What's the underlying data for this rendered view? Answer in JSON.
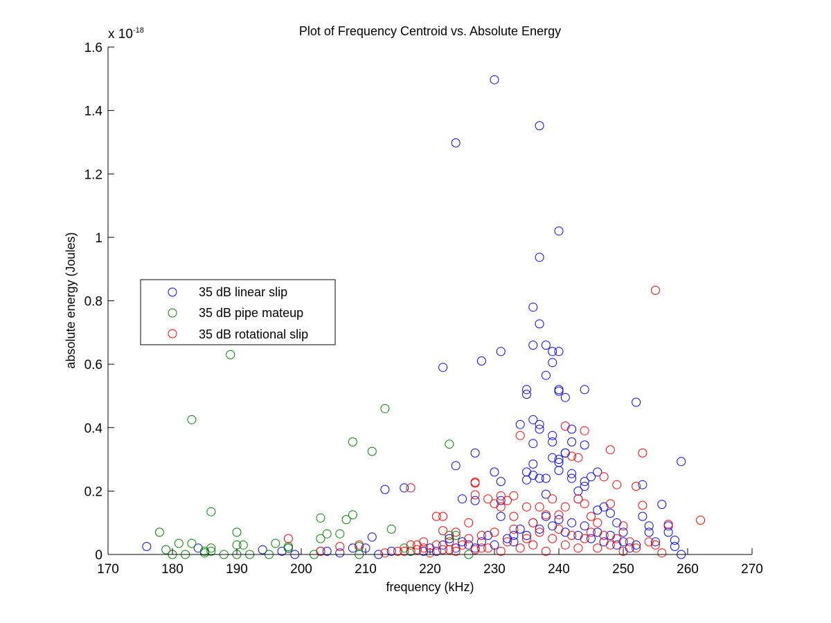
{
  "chart_data": {
    "type": "scatter",
    "title": "Plot of Frequency Centroid vs. Absolute Energy",
    "xlabel": "frequency (kHz)",
    "ylabel": "absolute energy (Joules)",
    "y_multiplier_label": "x 10",
    "y_multiplier_exponent": "-18",
    "xlim": [
      170,
      270
    ],
    "ylim": [
      0,
      1.6
    ],
    "x_ticks": [
      170,
      180,
      190,
      200,
      210,
      220,
      230,
      240,
      250,
      260,
      270
    ],
    "x_tick_labels": [
      "170",
      "180",
      "190",
      "200",
      "210",
      "220",
      "230",
      "240",
      "250",
      "260",
      "270"
    ],
    "y_ticks": [
      0,
      0.2,
      0.4,
      0.6,
      0.8,
      1.0,
      1.2,
      1.4,
      1.6
    ],
    "y_tick_labels": [
      "0",
      "0.2",
      "0.4",
      "0.6",
      "0.8",
      "1",
      "1.2",
      "1.4",
      "1.6"
    ],
    "grid": false,
    "legend_position": "middle-left",
    "marker": "open-circle",
    "series": [
      {
        "name": "35 dB linear slip",
        "color": "#0000ff",
        "points": [
          [
            176,
            0.025
          ],
          [
            184,
            0.02
          ],
          [
            194,
            0.015
          ],
          [
            197,
            0.01
          ],
          [
            198,
            0.02
          ],
          [
            199,
            0.0
          ],
          [
            203,
            0.01
          ],
          [
            204,
            0.01
          ],
          [
            206,
            0.005
          ],
          [
            208,
            0.02
          ],
          [
            210,
            0.02
          ],
          [
            211,
            0.055
          ],
          [
            212,
            0.0
          ],
          [
            213,
            0.205
          ],
          [
            214,
            0.01
          ],
          [
            216,
            0.21
          ],
          [
            217,
            0.01
          ],
          [
            219,
            0.01
          ],
          [
            222,
            0.59
          ],
          [
            224,
            1.298
          ],
          [
            224,
            0.28
          ],
          [
            225,
            0.175
          ],
          [
            227,
            0.32
          ],
          [
            227,
            0.17
          ],
          [
            228,
            0.61
          ],
          [
            230,
            1.497
          ],
          [
            230,
            0.26
          ],
          [
            231,
            0.64
          ],
          [
            231,
            0.23
          ],
          [
            231,
            0.17
          ],
          [
            231,
            0.12
          ],
          [
            233,
            0.06
          ],
          [
            234,
            0.41
          ],
          [
            235,
            0.52
          ],
          [
            235,
            0.505
          ],
          [
            235,
            0.26
          ],
          [
            235,
            0.235
          ],
          [
            236,
            0.78
          ],
          [
            236,
            0.66
          ],
          [
            236,
            0.425
          ],
          [
            236,
            0.35
          ],
          [
            236,
            0.285
          ],
          [
            236,
            0.25
          ],
          [
            237,
            1.352
          ],
          [
            237,
            0.937
          ],
          [
            237,
            0.727
          ],
          [
            237,
            0.41
          ],
          [
            237,
            0.395
          ],
          [
            237,
            0.24
          ],
          [
            238,
            0.66
          ],
          [
            238,
            0.565
          ],
          [
            238,
            0.24
          ],
          [
            238,
            0.19
          ],
          [
            239,
            0.64
          ],
          [
            239,
            0.605
          ],
          [
            239,
            0.375
          ],
          [
            239,
            0.355
          ],
          [
            239,
            0.305
          ],
          [
            240,
            1.02
          ],
          [
            240,
            0.64
          ],
          [
            240,
            0.52
          ],
          [
            240,
            0.515
          ],
          [
            240,
            0.3
          ],
          [
            240,
            0.29
          ],
          [
            240,
            0.265
          ],
          [
            241,
            0.495
          ],
          [
            241,
            0.32
          ],
          [
            241,
            0.32
          ],
          [
            242,
            0.395
          ],
          [
            242,
            0.355
          ],
          [
            242,
            0.255
          ],
          [
            242,
            0.24
          ],
          [
            243,
            0.2
          ],
          [
            243,
            0.175
          ],
          [
            244,
            0.52
          ],
          [
            244,
            0.345
          ],
          [
            244,
            0.23
          ],
          [
            244,
            0.215
          ],
          [
            245,
            0.245
          ],
          [
            246,
            0.26
          ],
          [
            246,
            0.14
          ],
          [
            247,
            0.15
          ],
          [
            248,
            0.13
          ],
          [
            249,
            0.1
          ],
          [
            250,
            0.07
          ],
          [
            252,
            0.48
          ],
          [
            253,
            0.22
          ],
          [
            253,
            0.12
          ],
          [
            254,
            0.09
          ],
          [
            254,
            0.07
          ],
          [
            255,
            0.04
          ],
          [
            256,
            0.158
          ],
          [
            257,
            0.09
          ],
          [
            257,
            0.07
          ],
          [
            258,
            0.045
          ],
          [
            258,
            0.025
          ],
          [
            259,
            0.293
          ],
          [
            259,
            0.0
          ],
          [
            220,
            0.02
          ],
          [
            221,
            0.01
          ],
          [
            222,
            0.03
          ],
          [
            223,
            0.05
          ],
          [
            224,
            0.02
          ],
          [
            225,
            0.04
          ],
          [
            226,
            0.03
          ],
          [
            227,
            0.02
          ],
          [
            228,
            0.04
          ],
          [
            229,
            0.06
          ],
          [
            230,
            0.03
          ],
          [
            232,
            0.05
          ],
          [
            233,
            0.04
          ],
          [
            234,
            0.08
          ],
          [
            235,
            0.06
          ],
          [
            236,
            0.1
          ],
          [
            237,
            0.08
          ],
          [
            238,
            0.12
          ],
          [
            239,
            0.09
          ],
          [
            240,
            0.11
          ],
          [
            241,
            0.07
          ],
          [
            242,
            0.1
          ],
          [
            243,
            0.06
          ],
          [
            244,
            0.09
          ],
          [
            245,
            0.05
          ],
          [
            246,
            0.07
          ],
          [
            247,
            0.04
          ],
          [
            248,
            0.06
          ],
          [
            249,
            0.03
          ],
          [
            250,
            0.04
          ],
          [
            251,
            0.02
          ],
          [
            252,
            0.03
          ]
        ]
      },
      {
        "name": "35 dB pipe mateup",
        "color": "#008000",
        "points": [
          [
            178,
            0.07
          ],
          [
            179,
            0.015
          ],
          [
            180,
            0.0
          ],
          [
            181,
            0.035
          ],
          [
            182,
            0.0
          ],
          [
            183,
            0.425
          ],
          [
            183,
            0.035
          ],
          [
            185,
            0.005
          ],
          [
            185,
            0.01
          ],
          [
            186,
            0.135
          ],
          [
            186,
            0.02
          ],
          [
            186,
            0.01
          ],
          [
            188,
            0.0
          ],
          [
            189,
            0.63
          ],
          [
            190,
            0.07
          ],
          [
            190,
            0.03
          ],
          [
            190,
            0.0
          ],
          [
            191,
            0.03
          ],
          [
            192,
            0.0
          ],
          [
            195,
            0.0
          ],
          [
            196,
            0.035
          ],
          [
            198,
            0.02
          ],
          [
            198,
            0.025
          ],
          [
            202,
            0.0
          ],
          [
            203,
            0.115
          ],
          [
            203,
            0.05
          ],
          [
            204,
            0.065
          ],
          [
            206,
            0.065
          ],
          [
            207,
            0.11
          ],
          [
            208,
            0.355
          ],
          [
            208,
            0.125
          ],
          [
            209,
            0.0
          ],
          [
            209,
            0.025
          ],
          [
            211,
            0.325
          ],
          [
            213,
            0.46
          ],
          [
            214,
            0.08
          ],
          [
            217,
            0.01
          ],
          [
            223,
            0.348
          ],
          [
            223,
            0.06
          ],
          [
            224,
            0.06
          ],
          [
            216,
            0.02
          ],
          [
            226,
            0.0
          ]
        ]
      },
      {
        "name": "35 dB rotational slip",
        "color": "#ff0000",
        "points": [
          [
            198,
            0.05
          ],
          [
            203,
            0.01
          ],
          [
            206,
            0.025
          ],
          [
            209,
            0.03
          ],
          [
            213,
            0.005
          ],
          [
            215,
            0.01
          ],
          [
            216,
            0.01
          ],
          [
            217,
            0.21
          ],
          [
            218,
            0.03
          ],
          [
            219,
            0.02
          ],
          [
            221,
            0.12
          ],
          [
            222,
            0.12
          ],
          [
            222,
            0.075
          ],
          [
            223,
            0.015
          ],
          [
            224,
            0.07
          ],
          [
            226,
            0.1
          ],
          [
            227,
            0.228
          ],
          [
            227,
            0.225
          ],
          [
            227,
            0.188
          ],
          [
            228,
            0.02
          ],
          [
            229,
            0.175
          ],
          [
            230,
            0.16
          ],
          [
            231,
            0.185
          ],
          [
            231,
            0.15
          ],
          [
            232,
            0.17
          ],
          [
            233,
            0.185
          ],
          [
            233,
            0.12
          ],
          [
            234,
            0.375
          ],
          [
            235,
            0.15
          ],
          [
            236,
            0.1
          ],
          [
            237,
            0.15
          ],
          [
            238,
            0.125
          ],
          [
            239,
            0.175
          ],
          [
            240,
            0.125
          ],
          [
            241,
            0.405
          ],
          [
            241,
            0.15
          ],
          [
            242,
            0.31
          ],
          [
            243,
            0.305
          ],
          [
            243,
            0.175
          ],
          [
            244,
            0.39
          ],
          [
            244,
            0.16
          ],
          [
            245,
            0.12
          ],
          [
            246,
            0.1
          ],
          [
            247,
            0.245
          ],
          [
            248,
            0.33
          ],
          [
            248,
            0.16
          ],
          [
            249,
            0.22
          ],
          [
            250,
            0.09
          ],
          [
            252,
            0.215
          ],
          [
            253,
            0.32
          ],
          [
            253,
            0.155
          ],
          [
            254,
            0.04
          ],
          [
            255,
            0.833
          ],
          [
            255,
            0.03
          ],
          [
            256,
            0.005
          ],
          [
            257,
            0.095
          ],
          [
            262,
            0.108
          ],
          [
            217,
            0.03
          ],
          [
            218,
            0.015
          ],
          [
            219,
            0.04
          ],
          [
            220,
            0.005
          ],
          [
            221,
            0.03
          ],
          [
            222,
            0.015
          ],
          [
            223,
            0.04
          ],
          [
            224,
            0.01
          ],
          [
            225,
            0.03
          ],
          [
            226,
            0.05
          ],
          [
            227,
            0.015
          ],
          [
            228,
            0.06
          ],
          [
            229,
            0.02
          ],
          [
            230,
            0.07
          ],
          [
            231,
            0.01
          ],
          [
            232,
            0.04
          ],
          [
            233,
            0.08
          ],
          [
            234,
            0.02
          ],
          [
            235,
            0.05
          ],
          [
            236,
            0.03
          ],
          [
            237,
            0.07
          ],
          [
            238,
            0.01
          ],
          [
            239,
            0.05
          ],
          [
            240,
            0.08
          ],
          [
            241,
            0.03
          ],
          [
            242,
            0.06
          ],
          [
            243,
            0.02
          ],
          [
            244,
            0.05
          ],
          [
            245,
            0.07
          ],
          [
            246,
            0.02
          ],
          [
            247,
            0.06
          ],
          [
            248,
            0.03
          ],
          [
            249,
            0.05
          ],
          [
            250,
            0.01
          ],
          [
            251,
            0.04
          ],
          [
            252,
            0.02
          ]
        ]
      }
    ]
  },
  "legend": {
    "items": [
      {
        "label": "35 dB linear slip",
        "color": "#0000ff"
      },
      {
        "label": "35 dB pipe mateup",
        "color": "#008000"
      },
      {
        "label": "35 dB rotational slip",
        "color": "#ff0000"
      }
    ]
  }
}
